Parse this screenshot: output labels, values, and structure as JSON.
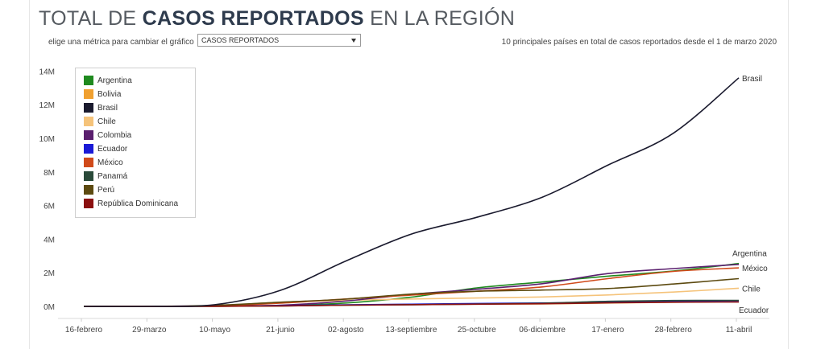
{
  "header": {
    "title_prefix": "TOTAL DE ",
    "title_bold": "CASOS REPORTADOS",
    "title_suffix": " EN LA REGIÓN",
    "metric_label": "elige una métrica para cambiar el gráfico",
    "metric_selected": "CASOS REPORTADOS",
    "subtitle": "10 principales países en total de casos reportados desde el 1 de marzo 2020"
  },
  "chart_data": {
    "type": "line",
    "title": "TOTAL DE CASOS REPORTADOS EN LA REGIÓN",
    "xlabel": "",
    "ylabel": "",
    "x": [
      "16-febrero",
      "29-marzo",
      "10-mayo",
      "21-junio",
      "02-agosto",
      "13-septiembre",
      "25-octubre",
      "06-diciembre",
      "17-enero",
      "28-febrero",
      "11-abril"
    ],
    "x_ticks": [
      "16-febrero",
      "29-marzo",
      "10-mayo",
      "21-junio",
      "02-agosto",
      "13-septiembre",
      "25-octubre",
      "06-diciembre",
      "17-enero",
      "28-febrero",
      "11-abril"
    ],
    "y_ticks": [
      "0M",
      "2M",
      "4M",
      "6M",
      "8M",
      "10M",
      "12M",
      "14M"
    ],
    "ylim": [
      0,
      14.5
    ],
    "y_unit": "M",
    "grid": {
      "x": false,
      "y": false
    },
    "legend_position": "top-left",
    "series": [
      {
        "name": "Argentina",
        "color": "#1f8a1f",
        "values": [
          0,
          0,
          0.01,
          0.05,
          0.2,
          0.55,
          1.1,
          1.45,
          1.8,
          2.1,
          2.55
        ]
      },
      {
        "name": "Bolivia",
        "color": "#f0a030",
        "values": [
          0,
          0,
          0.005,
          0.03,
          0.08,
          0.13,
          0.14,
          0.15,
          0.2,
          0.25,
          0.28
        ]
      },
      {
        "name": "Brasil",
        "color": "#1a1a2e",
        "values": [
          0,
          0,
          0.1,
          0.95,
          2.7,
          4.3,
          5.3,
          6.5,
          8.4,
          10.3,
          13.6
        ]
      },
      {
        "name": "Chile",
        "color": "#f5c37a",
        "values": [
          0,
          0,
          0.03,
          0.25,
          0.36,
          0.44,
          0.5,
          0.56,
          0.68,
          0.85,
          1.08
        ]
      },
      {
        "name": "Colombia",
        "color": "#5a1f6e",
        "values": [
          0,
          0,
          0.01,
          0.07,
          0.32,
          0.72,
          1.02,
          1.35,
          1.95,
          2.25,
          2.5
        ]
      },
      {
        "name": "Ecuador",
        "color": "#1a1ad6",
        "values": [
          0,
          0,
          0.03,
          0.05,
          0.09,
          0.13,
          0.17,
          0.2,
          0.24,
          0.29,
          0.34
        ]
      },
      {
        "name": "México",
        "color": "#d04a1a",
        "values": [
          0,
          0,
          0.03,
          0.19,
          0.44,
          0.67,
          0.9,
          1.16,
          1.65,
          2.08,
          2.29
        ]
      },
      {
        "name": "Panamá",
        "color": "#2a4a3a",
        "values": [
          0,
          0,
          0.009,
          0.03,
          0.07,
          0.1,
          0.14,
          0.19,
          0.3,
          0.35,
          0.36
        ]
      },
      {
        "name": "Perú",
        "color": "#5c4a10",
        "values": [
          0,
          0,
          0.06,
          0.25,
          0.43,
          0.73,
          0.9,
          0.97,
          1.06,
          1.33,
          1.65
        ]
      },
      {
        "name": "República Dominicana",
        "color": "#8b1010",
        "values": [
          0,
          0,
          0.01,
          0.03,
          0.07,
          0.1,
          0.13,
          0.16,
          0.21,
          0.25,
          0.26
        ]
      }
    ],
    "end_labels": [
      {
        "series": "Brasil",
        "text": "Brasil"
      },
      {
        "series": "Argentina",
        "text": "Argentina"
      },
      {
        "series": "México",
        "text": "México"
      },
      {
        "series": "Chile",
        "text": "Chile"
      },
      {
        "series": "Ecuador",
        "text": "Ecuador"
      }
    ]
  }
}
